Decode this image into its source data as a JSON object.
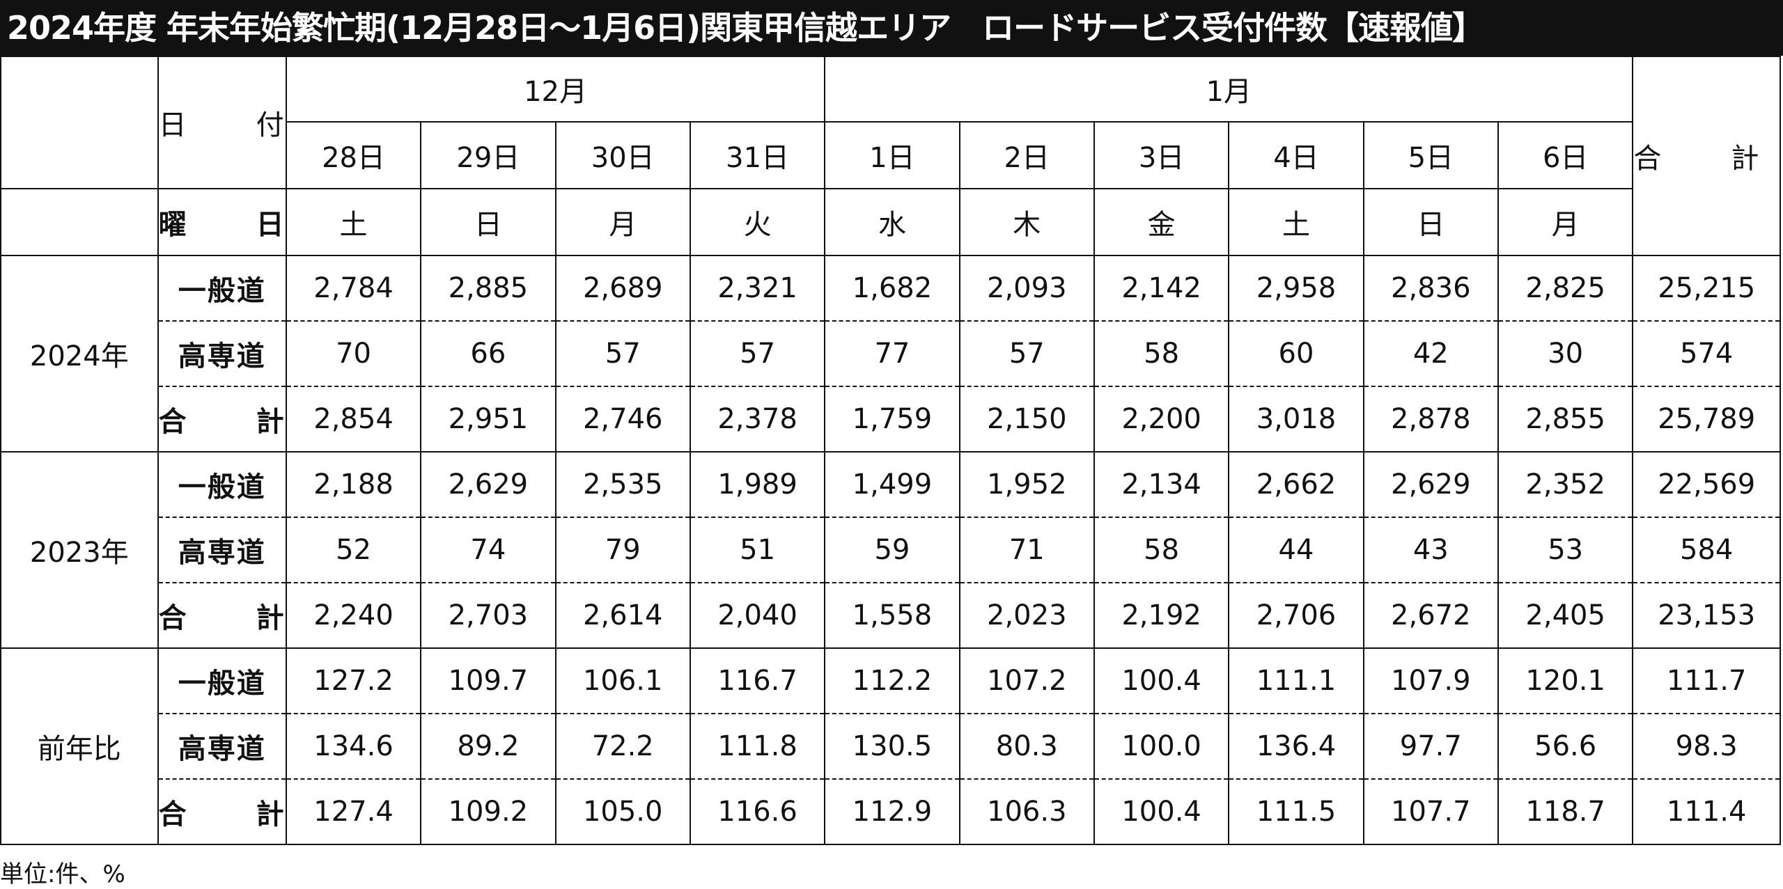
{
  "title": "2024年度 年末年始繁忙期(12月28日〜1月6日)関東甲信越エリア　ロードサービス受付件数【速報値】",
  "header": {
    "date_label": "日　付",
    "weekday_label": "曜　日",
    "total_label": "合　計",
    "month_dec": "12月",
    "month_jan": "1月",
    "days": [
      "28日",
      "29日",
      "30日",
      "31日",
      "1日",
      "2日",
      "3日",
      "4日",
      "5日",
      "6日"
    ],
    "weekdays": [
      "土",
      "日",
      "月",
      "火",
      "水",
      "木",
      "金",
      "土",
      "日",
      "月"
    ]
  },
  "row_labels": [
    "一般道",
    "高専道",
    "合　計"
  ],
  "groups": [
    {
      "label": "2024年",
      "rows": [
        [
          "2,784",
          "2,885",
          "2,689",
          "2,321",
          "1,682",
          "2,093",
          "2,142",
          "2,958",
          "2,836",
          "2,825",
          "25,215"
        ],
        [
          "70",
          "66",
          "57",
          "57",
          "77",
          "57",
          "58",
          "60",
          "42",
          "30",
          "574"
        ],
        [
          "2,854",
          "2,951",
          "2,746",
          "2,378",
          "1,759",
          "2,150",
          "2,200",
          "3,018",
          "2,878",
          "2,855",
          "25,789"
        ]
      ]
    },
    {
      "label": "2023年",
      "rows": [
        [
          "2,188",
          "2,629",
          "2,535",
          "1,989",
          "1,499",
          "1,952",
          "2,134",
          "2,662",
          "2,629",
          "2,352",
          "22,569"
        ],
        [
          "52",
          "74",
          "79",
          "51",
          "59",
          "71",
          "58",
          "44",
          "43",
          "53",
          "584"
        ],
        [
          "2,240",
          "2,703",
          "2,614",
          "2,040",
          "1,558",
          "2,023",
          "2,192",
          "2,706",
          "2,672",
          "2,405",
          "23,153"
        ]
      ]
    },
    {
      "label": "前年比",
      "rows": [
        [
          "127.2",
          "109.7",
          "106.1",
          "116.7",
          "112.2",
          "107.2",
          "100.4",
          "111.1",
          "107.9",
          "120.1",
          "111.7"
        ],
        [
          "134.6",
          "89.2",
          "72.2",
          "111.8",
          "130.5",
          "80.3",
          "100.0",
          "136.4",
          "97.7",
          "56.6",
          "98.3"
        ],
        [
          "127.4",
          "109.2",
          "105.0",
          "116.6",
          "112.9",
          "106.3",
          "100.4",
          "111.5",
          "107.7",
          "118.7",
          "111.4"
        ]
      ]
    }
  ],
  "unit_note": "単位:件、%"
}
